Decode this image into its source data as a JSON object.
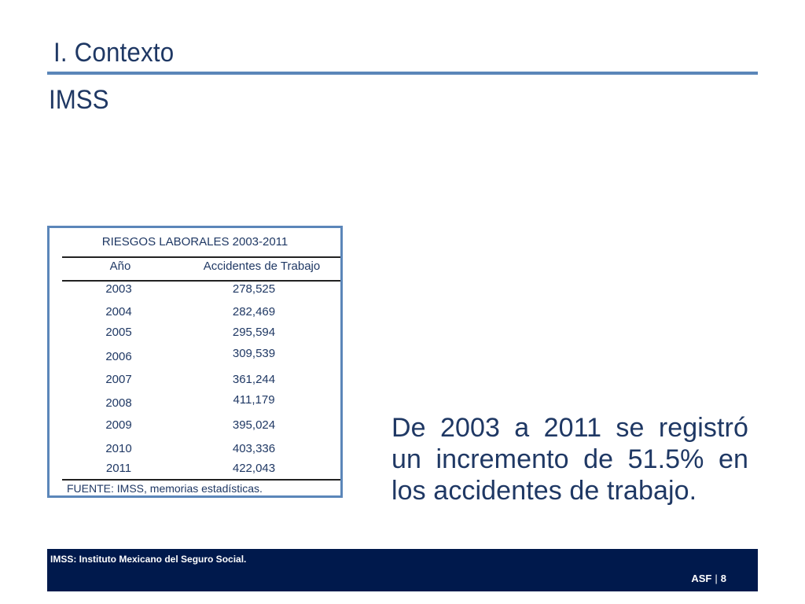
{
  "header": {
    "section_title": "I. Contexto",
    "subtitle": "IMSS"
  },
  "table": {
    "title": "RIESGOS LABORALES 2003-2011",
    "columns": [
      "Año",
      "Accidentes de Trabajo"
    ],
    "rows": [
      {
        "year": "2003",
        "value": "278,525"
      },
      {
        "year": "2004",
        "value": "282,469"
      },
      {
        "year": "2005",
        "value": "295,594"
      },
      {
        "year": "2006",
        "value": "309,539"
      },
      {
        "year": "2007",
        "value": "361,244"
      },
      {
        "year": "2008",
        "value": "411,179"
      },
      {
        "year": "2009",
        "value": "395,024"
      },
      {
        "year": "2010",
        "value": "403,336"
      },
      {
        "year": "2011",
        "value": "422,043"
      }
    ],
    "source": "FUENTE:  IMSS, memorias estadísticas."
  },
  "note": "De 2003 a 2011 se registró un incremento de 51.5% en los accidentes de trabajo.",
  "footer": {
    "abbreviation": "IMSS: Instituto Mexicano del Seguro Social.",
    "org": "ASF",
    "separator": "|",
    "page": "8"
  },
  "colors": {
    "title_text": "#1f3864",
    "accent_rule": "#5b86b9",
    "footer_bg": "#00194c"
  }
}
